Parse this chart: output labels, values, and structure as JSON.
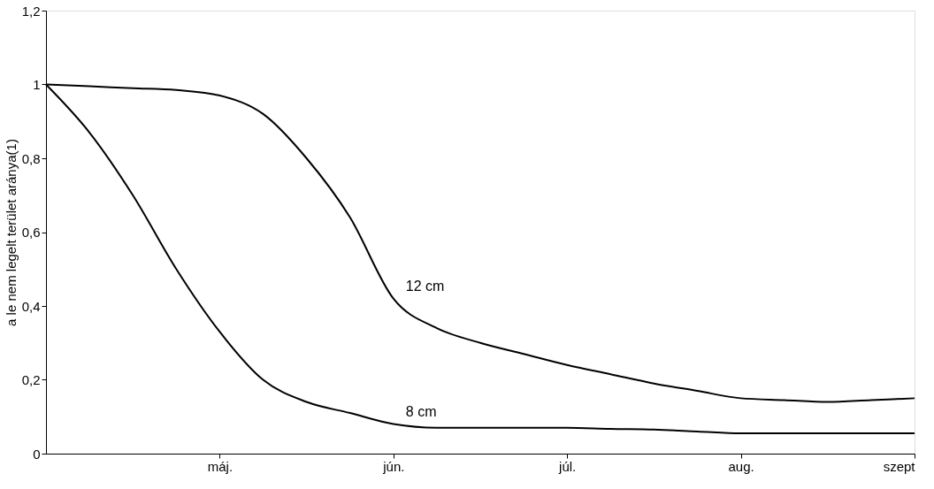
{
  "chart_data": {
    "type": "line",
    "ylabel": "a le nem legelt terület aránya(1)",
    "categories": [
      null,
      null,
      null,
      null,
      "máj.",
      null,
      null,
      null,
      "jún.",
      null,
      null,
      null,
      "júl.",
      null,
      null,
      null,
      "aug.",
      null,
      null,
      null,
      "szept"
    ],
    "ylim": [
      0,
      1.2
    ],
    "yticks": [
      {
        "value": 0,
        "label": "0"
      },
      {
        "value": 0.2,
        "label": "0,2"
      },
      {
        "value": 0.4,
        "label": "0,4"
      },
      {
        "value": 0.6,
        "label": "0,6"
      },
      {
        "value": 0.8,
        "label": "0,8"
      },
      {
        "value": 1,
        "label": "1"
      },
      {
        "value": 1.2,
        "label": "1,2"
      }
    ],
    "grid": false,
    "legend": false,
    "marker": "none",
    "line_style": "solid",
    "series": [
      {
        "name": "12 cm",
        "color": "#000000",
        "values": [
          1,
          0.995,
          0.99,
          0.985,
          0.97,
          0.92,
          0.8,
          0.64,
          0.42,
          0.34,
          0.3,
          0.27,
          0.24,
          0.215,
          0.19,
          0.17,
          0.15,
          0.145,
          0.14,
          0.145,
          0.15
        ]
      },
      {
        "name": "8 cm",
        "color": "#000000",
        "values": [
          1,
          0.87,
          0.7,
          0.5,
          0.33,
          0.2,
          0.14,
          0.11,
          0.08,
          0.07,
          0.07,
          0.07,
          0.07,
          0.067,
          0.065,
          0.06,
          0.055,
          0.055,
          0.055,
          0.055,
          0.055
        ]
      }
    ]
  }
}
